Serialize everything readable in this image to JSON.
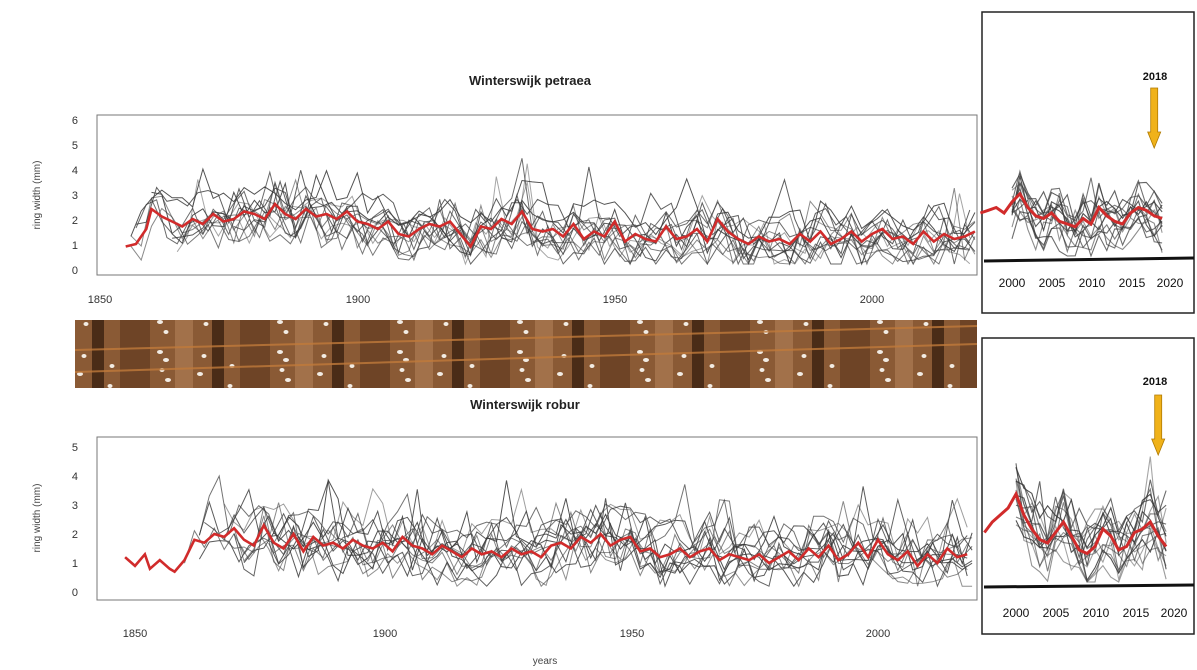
{
  "chart_data": [
    {
      "type": "line",
      "title": "Winterswijk petraea",
      "xlabel": "",
      "ylabel": "ring width (mm)",
      "xlim": [
        1850,
        2020
      ],
      "ylim": [
        0,
        6
      ],
      "x_ticks": [
        "1850",
        "1900",
        "1950",
        "2000"
      ],
      "y_ticks": [
        "0",
        "1",
        "2",
        "3",
        "4",
        "5",
        "6"
      ],
      "mean_series_color": "#d12b2b",
      "individual_series_color": "#3a3a3a",
      "mean_series": {
        "x": [
          1855,
          1857,
          1859,
          1860,
          1862,
          1864,
          1866,
          1868,
          1870,
          1872,
          1874,
          1876,
          1878,
          1880,
          1882,
          1884,
          1886,
          1888,
          1890,
          1892,
          1894,
          1896,
          1898,
          1900,
          1902,
          1904,
          1906,
          1908,
          1910,
          1912,
          1914,
          1916,
          1918,
          1920,
          1922,
          1924,
          1926,
          1928,
          1930,
          1932,
          1934,
          1936,
          1938,
          1940,
          1942,
          1944,
          1946,
          1948,
          1950,
          1952,
          1954,
          1956,
          1958,
          1960,
          1962,
          1964,
          1966,
          1968,
          1970,
          1972,
          1974,
          1976,
          1978,
          1980,
          1982,
          1984,
          1986,
          1988,
          1990,
          1992,
          1994,
          1996,
          1998,
          2000,
          2002,
          2004,
          2006,
          2008,
          2010,
          2012,
          2014,
          2016,
          2018,
          2020
        ],
        "y": [
          0.9,
          1.0,
          1.6,
          2.4,
          2.1,
          1.9,
          1.7,
          2.0,
          1.8,
          2.2,
          1.9,
          2.0,
          2.3,
          2.2,
          2.0,
          2.6,
          2.2,
          2.0,
          2.4,
          2.1,
          2.2,
          2.0,
          2.3,
          1.9,
          1.8,
          1.6,
          1.9,
          1.4,
          1.3,
          1.6,
          1.8,
          1.7,
          1.9,
          1.4,
          0.9,
          1.7,
          1.6,
          2.0,
          1.8,
          2.3,
          1.6,
          1.5,
          1.6,
          1.3,
          1.8,
          1.2,
          1.5,
          1.3,
          1.9,
          1.1,
          1.4,
          1.2,
          1.1,
          1.7,
          1.2,
          1.3,
          1.6,
          1.1,
          2.0,
          1.5,
          1.2,
          1.0,
          1.3,
          1.1,
          1.2,
          1.0,
          1.4,
          1.1,
          1.5,
          1.0,
          1.2,
          1.5,
          1.1,
          1.4,
          1.6,
          1.2,
          1.3,
          1.0,
          1.5,
          1.1,
          1.4,
          1.2,
          1.3,
          1.5
        ]
      }
    },
    {
      "type": "line",
      "title": "Winterswijk robur",
      "xlabel": "years",
      "ylabel": "ring width (mm)",
      "xlim": [
        1846,
        2020
      ],
      "ylim": [
        0,
        5
      ],
      "x_ticks": [
        "1850",
        "1900",
        "1950",
        "2000"
      ],
      "y_ticks": [
        "0",
        "1",
        "2",
        "3",
        "4",
        "5"
      ],
      "mean_series_color": "#d12b2b",
      "individual_series_color": "#3a3a3a",
      "mean_series": {
        "x": [
          1848,
          1850,
          1852,
          1853,
          1855,
          1857,
          1858,
          1860,
          1862,
          1864,
          1866,
          1868,
          1870,
          1872,
          1874,
          1876,
          1878,
          1880,
          1882,
          1884,
          1886,
          1888,
          1890,
          1892,
          1894,
          1896,
          1898,
          1900,
          1902,
          1904,
          1906,
          1908,
          1910,
          1912,
          1914,
          1916,
          1918,
          1920,
          1922,
          1924,
          1926,
          1928,
          1930,
          1932,
          1934,
          1936,
          1938,
          1940,
          1942,
          1944,
          1946,
          1948,
          1950,
          1952,
          1954,
          1956,
          1958,
          1960,
          1962,
          1964,
          1966,
          1968,
          1970,
          1972,
          1974,
          1976,
          1978,
          1980,
          1982,
          1984,
          1986,
          1988,
          1990,
          1992,
          1994,
          1996,
          1998,
          2000,
          2002,
          2004,
          2006,
          2008,
          2010,
          2012,
          2014,
          2016,
          2018,
          2020
        ],
        "y": [
          1.2,
          0.9,
          1.3,
          0.8,
          1.1,
          0.8,
          0.7,
          1.1,
          1.8,
          1.7,
          2.0,
          1.9,
          2.2,
          1.8,
          1.6,
          2.3,
          1.7,
          1.5,
          2.0,
          1.4,
          1.9,
          1.6,
          1.7,
          1.5,
          1.8,
          1.6,
          1.5,
          1.7,
          1.4,
          1.9,
          1.6,
          1.5,
          1.3,
          1.6,
          1.4,
          1.2,
          1.5,
          1.3,
          1.4,
          1.2,
          1.5,
          1.3,
          1.4,
          1.2,
          1.6,
          1.7,
          1.5,
          1.9,
          1.7,
          2.0,
          1.6,
          1.8,
          1.9,
          1.4,
          1.5,
          1.2,
          1.3,
          1.5,
          1.2,
          1.4,
          1.5,
          1.1,
          1.3,
          1.2,
          1.1,
          1.3,
          1.0,
          1.2,
          1.4,
          1.1,
          1.5,
          1.2,
          1.6,
          1.1,
          1.3,
          1.7,
          1.2,
          1.8,
          1.3,
          1.1,
          1.4,
          0.9,
          1.3,
          1.0,
          1.5,
          1.2,
          1.3,
          1.1
        ]
      }
    },
    {
      "type": "line",
      "title": "",
      "xlabel": "",
      "ylabel": "",
      "xlim": [
        1995,
        2022
      ],
      "ylim": [
        0,
        6
      ],
      "x_ticks": [
        "2000",
        "2005",
        "2010",
        "2015",
        "2020"
      ],
      "annotation": "2018",
      "annotation_x": 2018,
      "mean_series_color": "#d12b2b",
      "individual_series_color": "#3a3a3a",
      "mean_series": {
        "x": [
          1996,
          1997,
          1998,
          1999,
          2000,
          2001,
          2002,
          2003,
          2004,
          2005,
          2006,
          2007,
          2008,
          2009,
          2010,
          2011,
          2012,
          2013,
          2014,
          2015,
          2016,
          2017,
          2018,
          2019
        ],
        "y": [
          2.8,
          2.9,
          3.0,
          2.8,
          3.2,
          3.5,
          3.0,
          2.7,
          2.6,
          2.8,
          2.5,
          2.4,
          2.3,
          2.6,
          2.4,
          3.0,
          2.7,
          2.5,
          2.4,
          2.8,
          3.0,
          2.9,
          2.7,
          2.6
        ]
      }
    },
    {
      "type": "line",
      "title": "",
      "xlabel": "",
      "ylabel": "",
      "xlim": [
        1995,
        2022
      ],
      "ylim": [
        0,
        5
      ],
      "x_ticks": [
        "2000",
        "2005",
        "2010",
        "2015",
        "2020"
      ],
      "annotation": "2018",
      "annotation_x": 2018,
      "mean_series_color": "#d12b2b",
      "individual_series_color": "#3a3a3a",
      "mean_series": {
        "x": [
          1996,
          1997,
          1998,
          1999,
          2000,
          2001,
          2002,
          2003,
          2004,
          2005,
          2006,
          2007,
          2008,
          2009,
          2010,
          2011,
          2012,
          2013,
          2014,
          2015,
          2016,
          2017,
          2018,
          2019
        ],
        "y": [
          2.5,
          2.8,
          3.0,
          3.2,
          3.6,
          3.0,
          2.6,
          2.3,
          2.2,
          2.5,
          2.8,
          2.4,
          2.0,
          1.9,
          2.1,
          2.6,
          2.4,
          2.0,
          2.1,
          2.5,
          2.6,
          2.8,
          2.4,
          2.1
        ]
      }
    }
  ],
  "arrow_color": "#f0b21a"
}
